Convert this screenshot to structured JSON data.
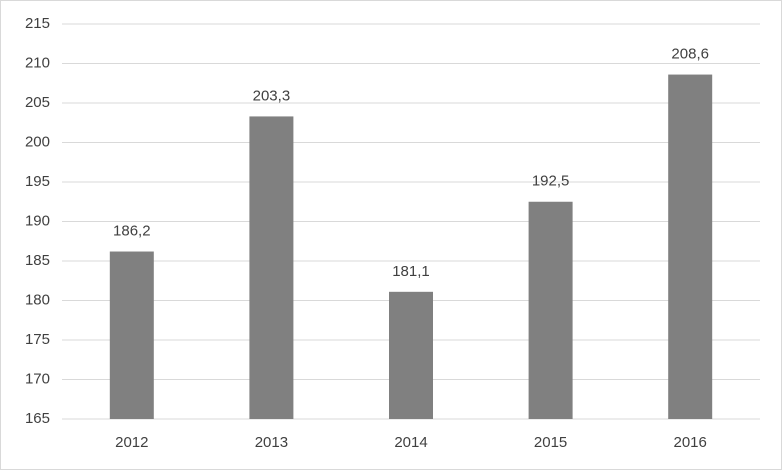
{
  "chart_data": {
    "type": "bar",
    "categories": [
      "2012",
      "2013",
      "2014",
      "2015",
      "2016"
    ],
    "values": [
      186.2,
      203.3,
      181.1,
      192.5,
      208.6
    ],
    "value_labels": [
      "186,2",
      "203,3",
      "181,1",
      "192,5",
      "208,6"
    ],
    "color": "#808080",
    "ylim": [
      165,
      215
    ],
    "yticks": [
      165,
      170,
      175,
      180,
      185,
      190,
      195,
      200,
      205,
      210,
      215
    ],
    "grid": true
  }
}
